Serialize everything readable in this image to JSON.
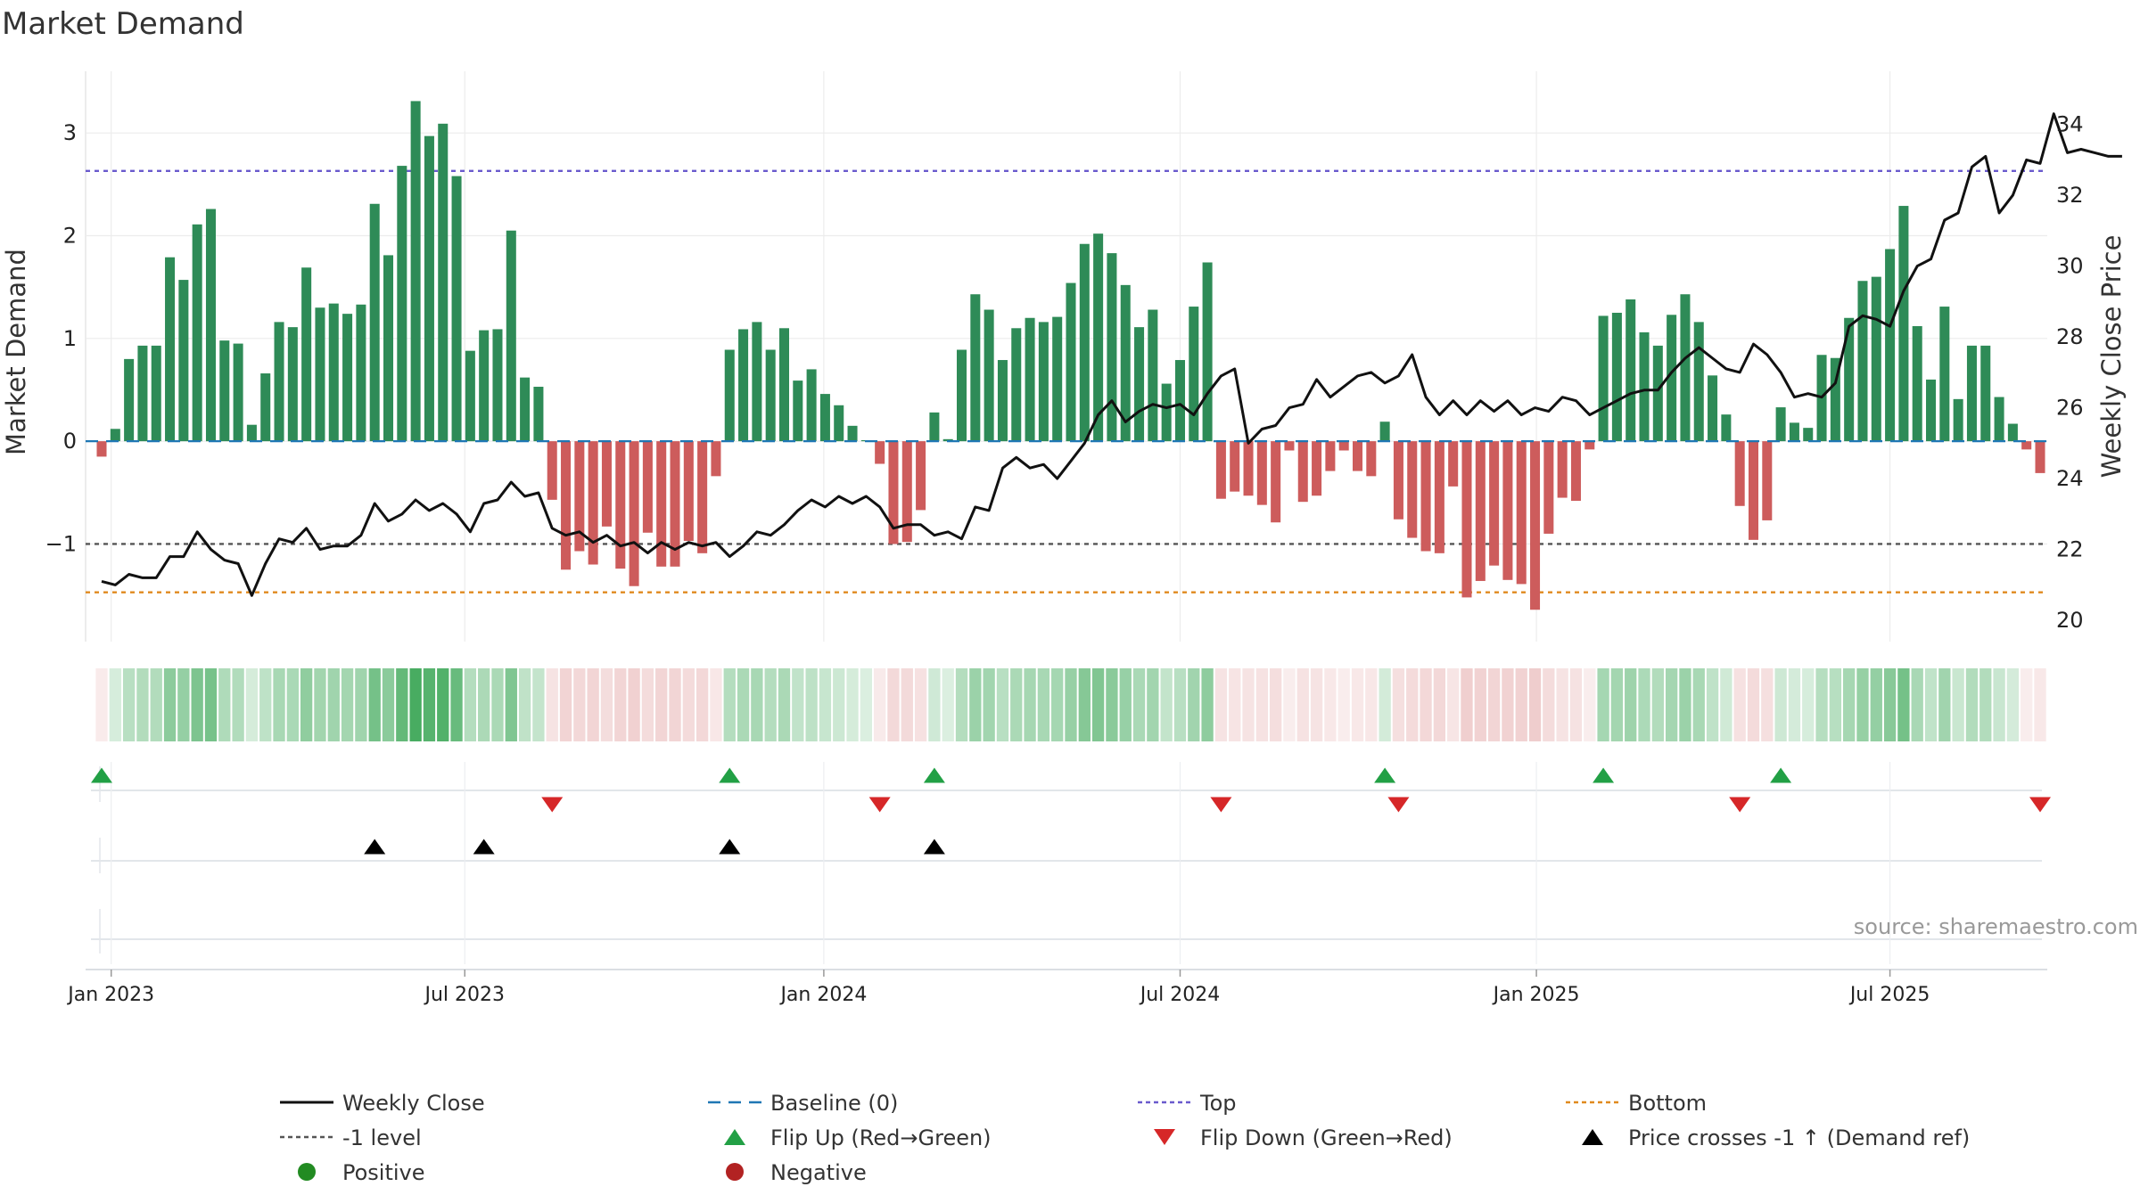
{
  "chart_data": {
    "type": "bar",
    "title": "Market Demand",
    "ylabel_left": "Market Demand",
    "ylabel_right": "Weekly Close Price",
    "source": "source: sharemaestro.com",
    "y_left_ticks": [
      "−1",
      "0",
      "1",
      "2",
      "3"
    ],
    "y_left_tick_values": [
      -1,
      0,
      1,
      2,
      3
    ],
    "y_left_range": [
      -1.95,
      3.6
    ],
    "y_right_ticks": [
      "20",
      "22",
      "24",
      "26",
      "28",
      "30",
      "32",
      "34"
    ],
    "y_right_tick_values": [
      20,
      22,
      24,
      26,
      28,
      30,
      32,
      34
    ],
    "y_right_range": [
      19.4,
      35.5
    ],
    "x_ticks": [
      "Jan 2023",
      "Jul 2023",
      "Jan 2024",
      "Jul 2024",
      "Jan 2025",
      "Jul 2025"
    ],
    "x_tick_weeks": [
      0.7,
      26.6,
      52.9,
      79.0,
      105.1,
      131.0
    ],
    "reference_lines": {
      "top": 2.63,
      "minus_one": -1.0,
      "bottom": -1.47,
      "baseline": 0
    },
    "colors": {
      "positive": "#2e8b57",
      "negative": "#cd5c5c",
      "close": "#111111",
      "baseline": "#1f77b4",
      "top": "#6a5acd",
      "minus_one": "#555555",
      "bottom": "#e08a1e",
      "flip_up": "#22a045",
      "flip_down": "#d62728",
      "cross": "#000000",
      "legend_positive": "#228b22",
      "legend_negative": "#b22222"
    },
    "series": [
      {
        "name": "Market Demand",
        "values": [
          -0.15,
          0.12,
          0.8,
          0.93,
          0.93,
          1.79,
          1.57,
          2.11,
          2.26,
          0.98,
          0.95,
          0.16,
          0.66,
          1.16,
          1.11,
          1.69,
          1.3,
          1.34,
          1.24,
          1.33,
          2.31,
          1.81,
          2.68,
          3.31,
          2.97,
          3.09,
          2.58,
          0.88,
          1.08,
          1.09,
          2.05,
          0.62,
          0.53,
          -0.57,
          -1.25,
          -1.07,
          -1.2,
          -0.83,
          -1.24,
          -1.41,
          -0.89,
          -1.22,
          -1.22,
          -0.97,
          -1.09,
          -0.34,
          0.89,
          1.09,
          1.16,
          0.89,
          1.1,
          0.59,
          0.7,
          0.46,
          0.35,
          0.15,
          0.01,
          -0.22,
          -1.0,
          -0.98,
          -0.67,
          0.28,
          0.02,
          0.89,
          1.43,
          1.28,
          0.79,
          1.1,
          1.2,
          1.16,
          1.21,
          1.54,
          1.92,
          2.02,
          1.83,
          1.52,
          1.11,
          1.28,
          0.56,
          0.79,
          1.31,
          1.74,
          -0.56,
          -0.49,
          -0.53,
          -0.62,
          -0.79,
          -0.09,
          -0.59,
          -0.53,
          -0.29,
          -0.09,
          -0.29,
          -0.34,
          0.19,
          -0.76,
          -0.94,
          -1.07,
          -1.09,
          -0.44,
          -1.52,
          -1.36,
          -1.21,
          -1.35,
          -1.39,
          -1.64,
          -0.9,
          -0.55,
          -0.58,
          -0.08,
          1.22,
          1.25,
          1.38,
          1.06,
          0.93,
          1.23,
          1.43,
          1.16,
          0.64,
          0.26,
          -0.63,
          -0.96,
          -0.77,
          0.33,
          0.18,
          0.13,
          0.84,
          0.81,
          1.2,
          1.56,
          1.6,
          1.87,
          2.29,
          1.12,
          0.6,
          1.31,
          0.41,
          0.93,
          0.93,
          0.43,
          0.17,
          -0.08,
          -0.31
        ]
      },
      {
        "name": "Weekly Close",
        "values": [
          21.1,
          21.0,
          21.3,
          21.2,
          21.2,
          21.8,
          21.8,
          22.5,
          22.0,
          21.7,
          21.6,
          20.7,
          21.6,
          22.3,
          22.2,
          22.6,
          22.0,
          22.1,
          22.1,
          22.4,
          23.3,
          22.8,
          23.0,
          23.4,
          23.1,
          23.3,
          23.0,
          22.5,
          23.3,
          23.4,
          23.9,
          23.5,
          23.6,
          22.6,
          22.4,
          22.5,
          22.2,
          22.4,
          22.1,
          22.2,
          21.9,
          22.2,
          22.0,
          22.2,
          22.1,
          22.2,
          21.8,
          22.1,
          22.5,
          22.4,
          22.7,
          23.1,
          23.4,
          23.2,
          23.5,
          23.3,
          23.5,
          23.2,
          22.6,
          22.7,
          22.7,
          22.4,
          22.5,
          22.3,
          23.2,
          23.1,
          24.3,
          24.6,
          24.3,
          24.4,
          24.0,
          24.5,
          25.0,
          25.8,
          26.2,
          25.6,
          25.9,
          26.1,
          26.0,
          26.1,
          25.8,
          26.4,
          26.9,
          27.1,
          25.0,
          25.4,
          25.5,
          26.0,
          26.1,
          26.8,
          26.3,
          26.6,
          26.9,
          27.0,
          26.7,
          26.9,
          27.5,
          26.3,
          25.8,
          26.2,
          25.8,
          26.2,
          25.9,
          26.2,
          25.8,
          26.0,
          25.9,
          26.3,
          26.2,
          25.8,
          26.0,
          26.2,
          26.4,
          26.5,
          26.5,
          27.0,
          27.4,
          27.7,
          27.4,
          27.1,
          27.0,
          27.8,
          27.5,
          27.0,
          26.3,
          26.4,
          26.3,
          26.7,
          28.3,
          28.6,
          28.5,
          28.3,
          29.3,
          30.0,
          30.2,
          31.3,
          31.5,
          32.8,
          33.1,
          31.5,
          32.0,
          33.0,
          32.9,
          34.3,
          33.2,
          33.3,
          33.2,
          33.1,
          33.1
        ]
      }
    ],
    "flip_up_weeks": [
      0,
      46,
      61,
      94,
      110,
      123
    ],
    "flip_down_weeks": [
      33,
      57,
      82,
      95,
      120,
      142
    ],
    "price_cross_weeks": [
      20,
      28,
      46,
      61
    ],
    "legend": [
      {
        "label": "Weekly Close",
        "kind": "solid-line",
        "color": "#111111"
      },
      {
        "label": "Baseline (0)",
        "kind": "dashed-line",
        "color": "#1f77b4"
      },
      {
        "label": "Top",
        "kind": "dotted-line",
        "color": "#6a5acd"
      },
      {
        "label": "Bottom",
        "kind": "dotted-line",
        "color": "#e08a1e"
      },
      {
        "label": "-1 level",
        "kind": "dotted-line",
        "color": "#555555"
      },
      {
        "label": "Flip Up (Red→Green)",
        "kind": "triangle-up",
        "color": "#22a045"
      },
      {
        "label": "Flip Down (Green→Red)",
        "kind": "triangle-down",
        "color": "#d62728"
      },
      {
        "label": "Price crosses -1 ↑ (Demand ref)",
        "kind": "triangle-up",
        "color": "#000000"
      },
      {
        "label": "Positive",
        "kind": "circle",
        "color": "#228b22"
      },
      {
        "label": "Negative",
        "kind": "circle",
        "color": "#b22222"
      }
    ]
  }
}
